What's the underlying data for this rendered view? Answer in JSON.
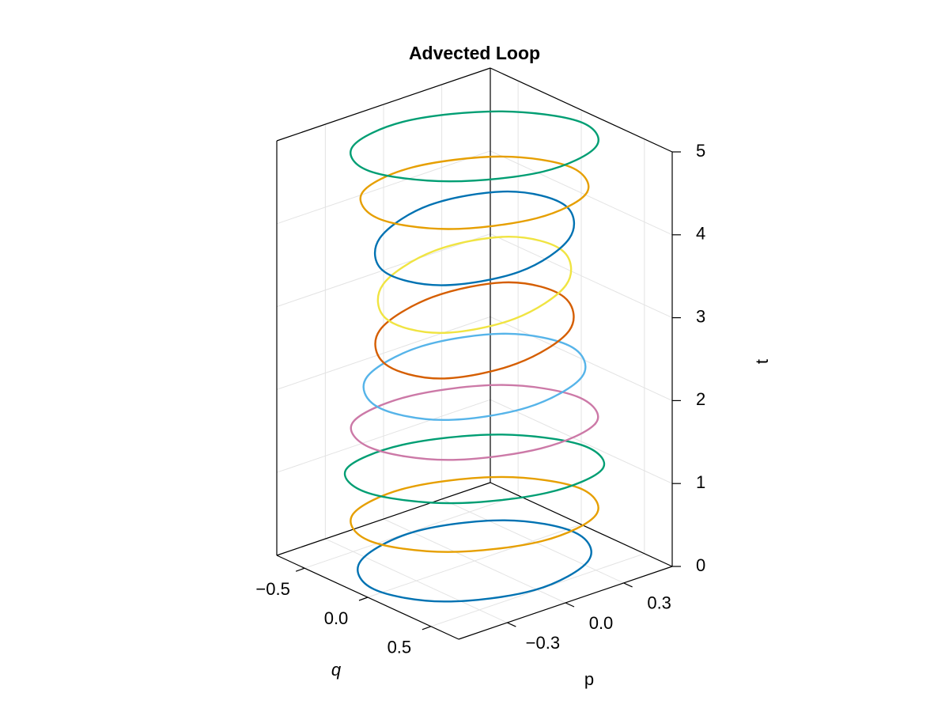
{
  "chart_data": {
    "type": "line3d",
    "title": "Advected Loop",
    "xlabel": "q",
    "ylabel": "p",
    "zlabel": "t",
    "xlim": [
      -0.72,
      0.72
    ],
    "ylim": [
      -0.55,
      0.55
    ],
    "zlim": [
      0,
      5
    ],
    "xticks": [
      {
        "value": -0.5,
        "label": "−0.5"
      },
      {
        "value": 0,
        "label": "0.0"
      },
      {
        "value": 0.5,
        "label": "0.5"
      }
    ],
    "yticks": [
      {
        "value": -0.3,
        "label": "−0.3"
      },
      {
        "value": 0,
        "label": "0.0"
      },
      {
        "value": 0.3,
        "label": "0.3"
      }
    ],
    "zticks": [
      0,
      1,
      2,
      3,
      4,
      5
    ],
    "grid": true,
    "series": [
      {
        "color": "#0072b2",
        "t": 0,
        "q": [
          0.38,
          0.06,
          -0.3,
          -0.49,
          -0.38,
          -0.06,
          0.3,
          0.49
        ],
        "p": [
          0.34,
          0.48,
          0.35,
          0.01,
          -0.34,
          -0.48,
          -0.35,
          -0.01
        ]
      },
      {
        "color": "#e69f00",
        "t": 0.56,
        "q": [
          0.41,
          0.09,
          -0.28,
          -0.49,
          -0.41,
          -0.09,
          0.28,
          0.49
        ],
        "p": [
          0.36,
          0.48,
          0.32,
          -0.03,
          -0.36,
          -0.48,
          -0.32,
          0.03
        ]
      },
      {
        "color": "#009e73",
        "t": 1.11,
        "q": [
          0.43,
          0.12,
          -0.26,
          -0.48,
          -0.43,
          -0.12,
          0.26,
          0.48
        ],
        "p": [
          0.38,
          0.47,
          0.29,
          -0.06,
          -0.38,
          -0.47,
          -0.29,
          0.06
        ]
      },
      {
        "color": "#cc79a7",
        "t": 1.67,
        "q": [
          0.41,
          0.09,
          -0.28,
          -0.48,
          -0.41,
          -0.09,
          0.28,
          0.48
        ],
        "p": [
          0.36,
          0.47,
          0.32,
          -0.03,
          -0.36,
          -0.47,
          -0.32,
          0.03
        ]
      },
      {
        "color": "#56b4e9",
        "t": 2.22,
        "q": [
          0.36,
          0.03,
          -0.32,
          -0.48,
          -0.36,
          -0.03,
          0.32,
          0.48
        ],
        "p": [
          0.32,
          0.48,
          0.37,
          0.04,
          -0.32,
          -0.48,
          -0.37,
          -0.04
        ]
      },
      {
        "color": "#d55e00",
        "t": 2.78,
        "q": [
          0.32,
          -0.03,
          -0.36,
          -0.47,
          -0.32,
          0.03,
          0.36,
          0.47
        ],
        "p": [
          0.28,
          0.48,
          0.41,
          0.09,
          -0.28,
          -0.48,
          -0.41,
          -0.09
        ]
      },
      {
        "color": "#f0e442",
        "t": 3.33,
        "q": [
          0.31,
          -0.04,
          -0.36,
          -0.47,
          -0.31,
          0.04,
          0.36,
          0.47
        ],
        "p": [
          0.27,
          0.48,
          0.41,
          0.1,
          -0.27,
          -0.48,
          -0.41,
          -0.1
        ]
      },
      {
        "color": "#0072b2",
        "t": 3.89,
        "q": [
          0.32,
          -0.02,
          -0.35,
          -0.48,
          -0.32,
          0.02,
          0.35,
          0.48
        ],
        "p": [
          0.28,
          0.48,
          0.4,
          0.08,
          -0.28,
          -0.48,
          -0.4,
          -0.08
        ]
      },
      {
        "color": "#e69f00",
        "t": 4.44,
        "q": [
          0.38,
          0.07,
          -0.27,
          -0.46,
          -0.38,
          -0.07,
          0.27,
          0.46
        ],
        "p": [
          0.33,
          0.45,
          0.31,
          -0.02,
          -0.33,
          -0.45,
          -0.31,
          0.02
        ]
      },
      {
        "color": "#009e73",
        "t": 5,
        "q": [
          0.41,
          0.11,
          -0.26,
          -0.48,
          -0.41,
          -0.11,
          0.26,
          0.48
        ],
        "p": [
          0.36,
          0.47,
          0.3,
          -0.04,
          -0.36,
          -0.47,
          -0.3,
          0.04
        ]
      }
    ]
  }
}
